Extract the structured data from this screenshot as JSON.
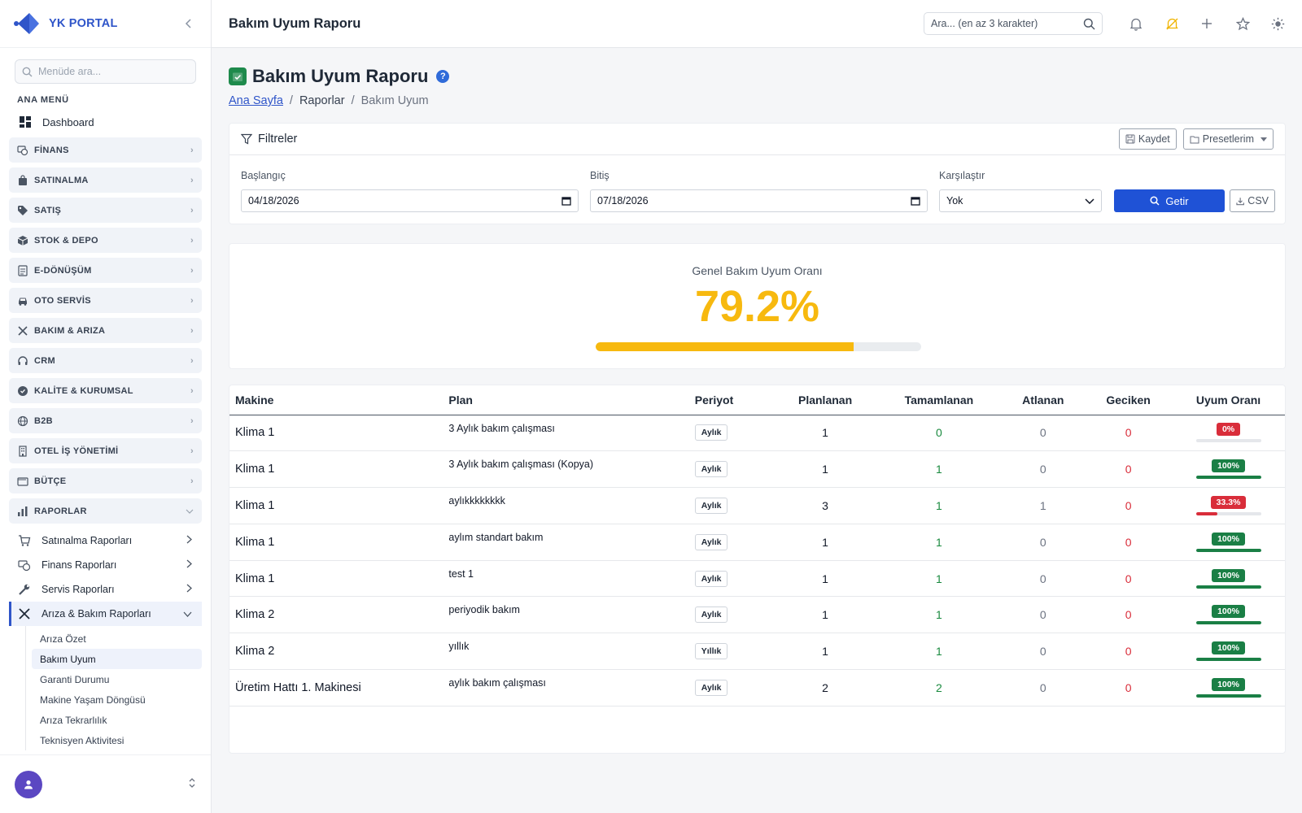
{
  "brand": {
    "name": "YK PORTAL"
  },
  "sidebar": {
    "search_placeholder": "Menüde ara...",
    "section_title": "ANA MENÜ",
    "dashboard_label": "Dashboard",
    "groups": [
      {
        "label": "FİNANS",
        "icon": "finance-icon"
      },
      {
        "label": "SATINALMA",
        "icon": "bag-icon"
      },
      {
        "label": "SATIŞ",
        "icon": "tag-icon"
      },
      {
        "label": "STOK & DEPO",
        "icon": "box-icon"
      },
      {
        "label": "E-DÖNÜŞÜM",
        "icon": "document-icon"
      },
      {
        "label": "OTO SERVİS",
        "icon": "car-icon"
      },
      {
        "label": "BAKIM & ARIZA",
        "icon": "tools-icon"
      },
      {
        "label": "CRM",
        "icon": "headset-icon"
      },
      {
        "label": "KALİTE & KURUMSAL",
        "icon": "badge-icon"
      },
      {
        "label": "B2B",
        "icon": "globe-icon"
      },
      {
        "label": "OTEL İŞ YÖNETİMİ",
        "icon": "building-icon"
      },
      {
        "label": "BÜTÇE",
        "icon": "wallet-icon"
      },
      {
        "label": "RAPORLAR",
        "icon": "bar-chart-icon"
      }
    ],
    "report_subitems": [
      {
        "label": "Satınalma Raporları"
      },
      {
        "label": "Finans Raporları"
      },
      {
        "label": "Servis Raporları"
      },
      {
        "label": "Arıza & Bakım Raporları"
      }
    ],
    "leaves": [
      "Arıza Özet",
      "Bakım Uyum",
      "Garanti Durumu",
      "Makine Yaşam Döngüsü",
      "Arıza Tekrarlılık",
      "Teknisyen Aktivitesi"
    ]
  },
  "topbar": {
    "title": "Bakım Uyum Raporu",
    "search_placeholder": "Ara... (en az 3 karakter)"
  },
  "page": {
    "title": "Bakım Uyum Raporu",
    "breadcrumb": {
      "home": "Ana Sayfa",
      "middle": "Raporlar",
      "current": "Bakım Uyum"
    }
  },
  "filters": {
    "title": "Filtreler",
    "save_label": "Kaydet",
    "presets_label": "Presetlerim",
    "start_label": "Başlangıç",
    "start_value": "04/18/2026",
    "end_label": "Bitiş",
    "end_value": "07/18/2026",
    "compare_label": "Karşılaştır",
    "compare_value": "Yok",
    "fetch_label": "Getir",
    "csv_label": "CSV"
  },
  "gauge": {
    "label": "Genel Bakım Uyum Oranı",
    "value_text": "79.2%",
    "fill_fraction": 0.792
  },
  "colors": {
    "accent": "#1f52d6",
    "gauge": "#f7b90f",
    "success": "#1a7f45",
    "danger": "#d92d3a"
  },
  "table": {
    "headers": [
      "Makine",
      "Plan",
      "Periyot",
      "Planlanan",
      "Tamamlanan",
      "Atlanan",
      "Geciken",
      "Uyum Oranı"
    ],
    "rows": [
      {
        "machine": "Klima 1",
        "plan": "3 Aylık bakım çalışması",
        "period": "Aylık",
        "planned": "1",
        "completed": "0",
        "skipped": "0",
        "late": "0",
        "rate_text": "0%",
        "rate": 0
      },
      {
        "machine": "Klima 1",
        "plan": "3 Aylık bakım çalışması (Kopya)",
        "period": "Aylık",
        "planned": "1",
        "completed": "1",
        "skipped": "0",
        "late": "0",
        "rate_text": "100%",
        "rate": 1
      },
      {
        "machine": "Klima 1",
        "plan": "aylıkkkkkkkk",
        "period": "Aylık",
        "planned": "3",
        "completed": "1",
        "skipped": "1",
        "late": "0",
        "rate_text": "33.3%",
        "rate": 0.333
      },
      {
        "machine": "Klima 1",
        "plan": "aylım standart bakım",
        "period": "Aylık",
        "planned": "1",
        "completed": "1",
        "skipped": "0",
        "late": "0",
        "rate_text": "100%",
        "rate": 1
      },
      {
        "machine": "Klima 1",
        "plan": "test 1",
        "period": "Aylık",
        "planned": "1",
        "completed": "1",
        "skipped": "0",
        "late": "0",
        "rate_text": "100%",
        "rate": 1
      },
      {
        "machine": "Klima 2",
        "plan": "periyodik bakım",
        "period": "Aylık",
        "planned": "1",
        "completed": "1",
        "skipped": "0",
        "late": "0",
        "rate_text": "100%",
        "rate": 1
      },
      {
        "machine": "Klima 2",
        "plan": "yıllık",
        "period": "Yıllık",
        "planned": "1",
        "completed": "1",
        "skipped": "0",
        "late": "0",
        "rate_text": "100%",
        "rate": 1
      },
      {
        "machine": "Üretim Hattı 1. Makinesi",
        "plan": "aylık bakım çalışması",
        "period": "Aylık",
        "planned": "2",
        "completed": "2",
        "skipped": "0",
        "late": "0",
        "rate_text": "100%",
        "rate": 1
      }
    ]
  }
}
